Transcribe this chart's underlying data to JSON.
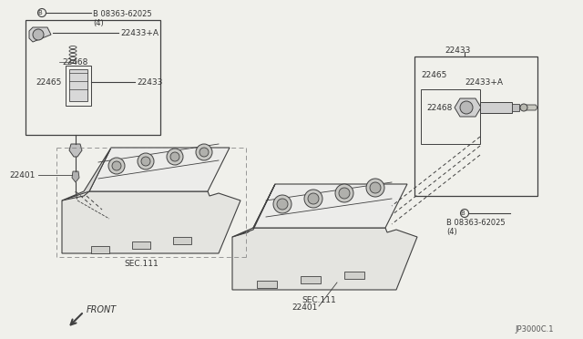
{
  "bg_color": "#f0f0eb",
  "line_color": "#404040",
  "text_color": "#333333",
  "footer": "JP3000C.1",
  "labels": {
    "bolt_left": "B 08363-62025\n(4)",
    "bolt_right": "B 08363-62025\n(4)",
    "part_22433_left": "22433",
    "part_22433_right": "22433",
    "part_22433A_left": "22433+A",
    "part_22433A_right": "22433+A",
    "part_22465_left": "22465",
    "part_22465_right": "22465",
    "part_22468_left": "22468",
    "part_22468_right": "22468",
    "part_22401_left": "22401",
    "part_22401_right": "22401",
    "sec111_left": "SEC.111",
    "sec111_right": "SEC.111",
    "front": "FRONT"
  }
}
